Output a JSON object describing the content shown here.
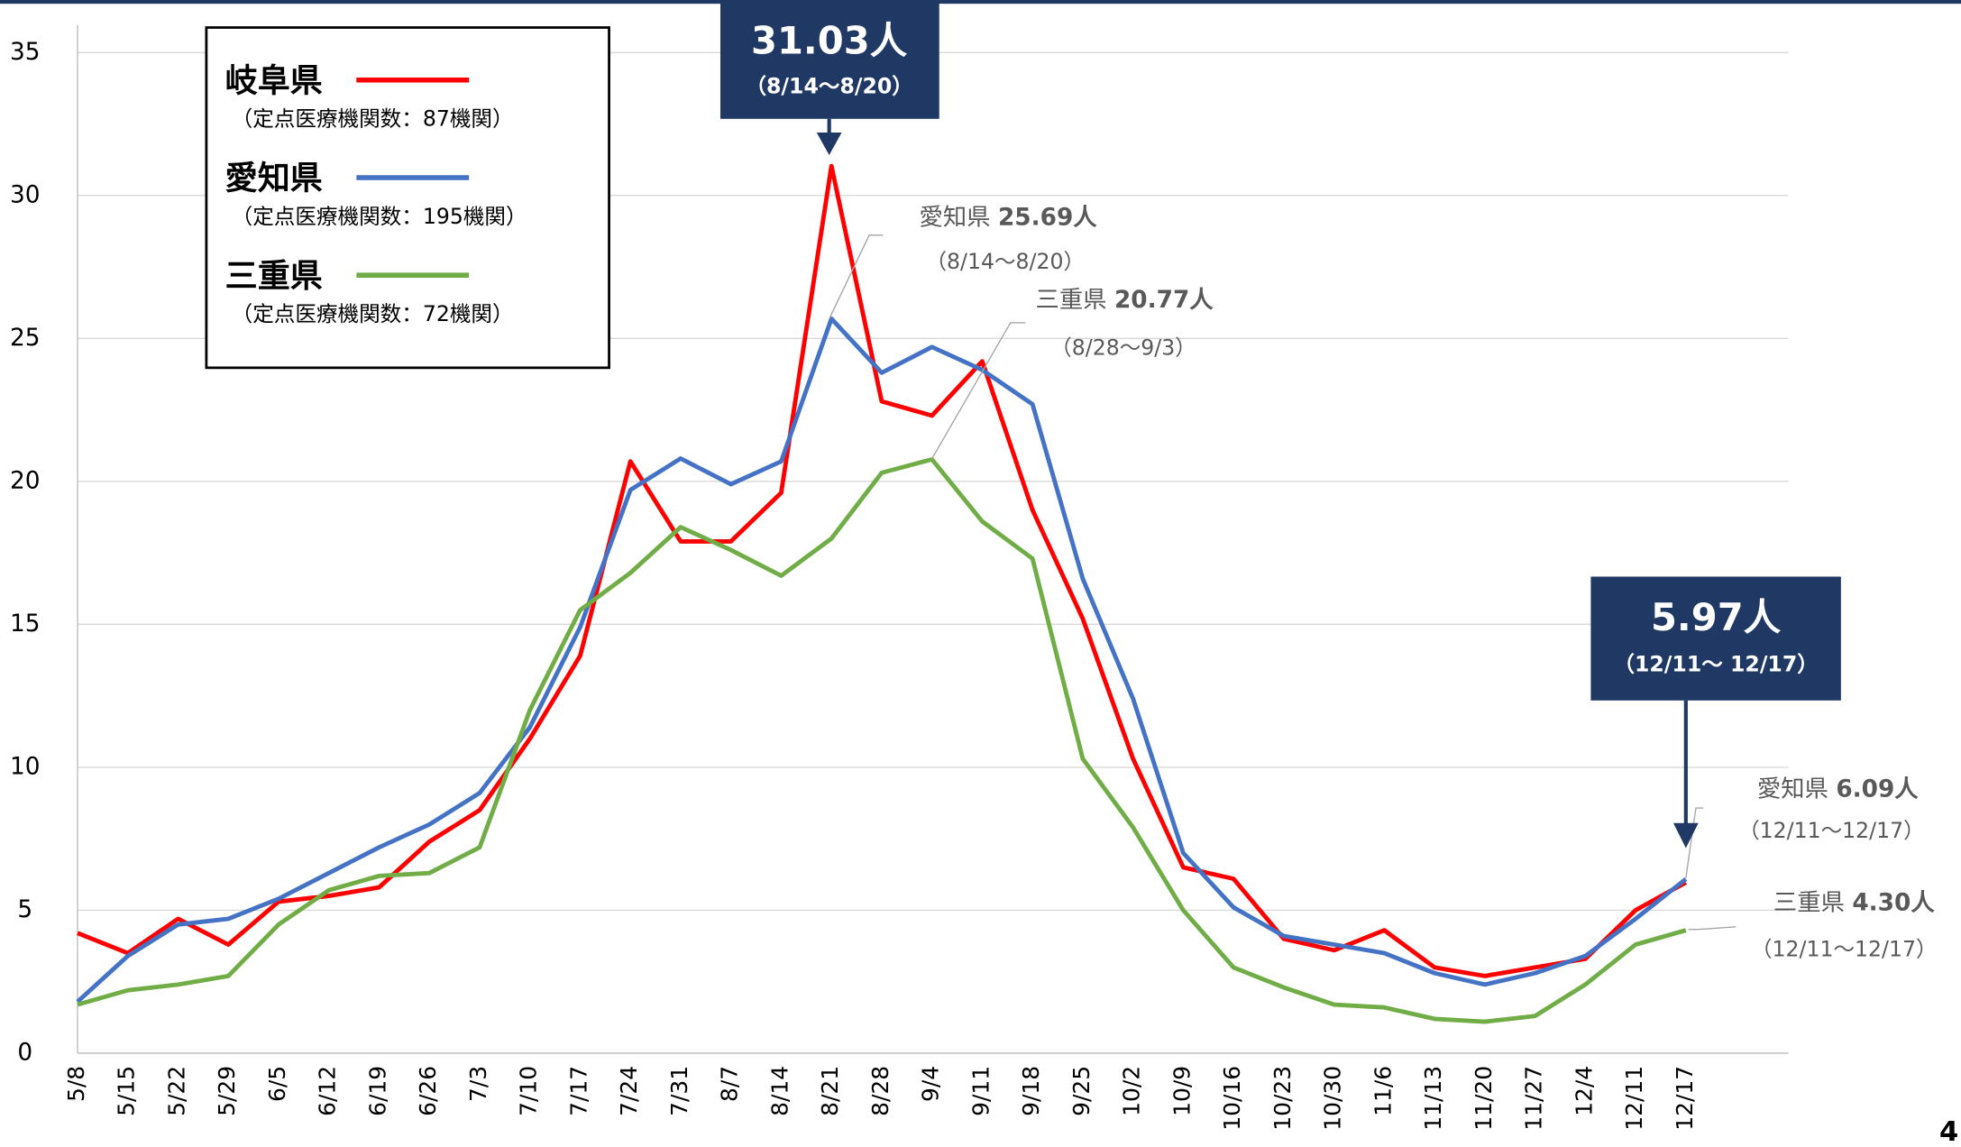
{
  "chart_data": {
    "type": "line",
    "categories": [
      "5/8",
      "5/15",
      "5/22",
      "5/29",
      "6/5",
      "6/12",
      "6/19",
      "6/26",
      "7/3",
      "7/10",
      "7/17",
      "7/24",
      "7/31",
      "8/7",
      "8/14",
      "8/21",
      "8/28",
      "9/4",
      "9/11",
      "9/18",
      "9/25",
      "10/2",
      "10/9",
      "10/16",
      "10/23",
      "10/30",
      "11/6",
      "11/13",
      "11/20",
      "11/27",
      "12/4",
      "12/11",
      "12/17"
    ],
    "series": [
      {
        "name": "岐阜県",
        "note": "（定点医療機関数：87機関）",
        "color": "#ff0000",
        "values": [
          4.2,
          3.5,
          4.7,
          3.8,
          5.3,
          5.5,
          5.8,
          7.4,
          8.5,
          11.0,
          13.9,
          20.7,
          17.9,
          17.9,
          19.6,
          31.03,
          22.8,
          22.3,
          24.2,
          19.0,
          15.2,
          10.3,
          6.5,
          6.1,
          4.0,
          3.6,
          4.3,
          3.0,
          2.7,
          3.0,
          3.3,
          5.0,
          5.97
        ]
      },
      {
        "name": "愛知県",
        "note": "（定点医療機関数：195機関）",
        "color": "#4472c4",
        "values": [
          1.8,
          3.4,
          4.5,
          4.7,
          5.4,
          6.3,
          7.2,
          8.0,
          9.1,
          11.4,
          14.9,
          19.7,
          20.8,
          19.9,
          20.7,
          25.69,
          23.8,
          24.7,
          23.9,
          22.7,
          16.6,
          12.4,
          7.0,
          5.1,
          4.1,
          3.8,
          3.5,
          2.8,
          2.4,
          2.8,
          3.4,
          4.7,
          6.09
        ]
      },
      {
        "name": "三重県",
        "note": "（定点医療機関数：72機関）",
        "color": "#70ad47",
        "values": [
          1.7,
          2.2,
          2.4,
          2.7,
          4.5,
          5.7,
          6.2,
          6.3,
          7.2,
          12.0,
          15.5,
          16.8,
          18.4,
          17.6,
          16.7,
          18.0,
          20.3,
          20.77,
          18.6,
          17.3,
          10.3,
          7.9,
          5.0,
          3.0,
          2.3,
          1.7,
          1.6,
          1.2,
          1.1,
          1.3,
          2.4,
          3.8,
          4.3
        ]
      }
    ],
    "ylim": [
      0,
      35
    ],
    "yticks": [
      0,
      5,
      10,
      15,
      20,
      25,
      30,
      35
    ],
    "grid": true,
    "callouts": [
      {
        "value": "31.03人",
        "period": "（8/14～8/20）"
      },
      {
        "value": "5.97人",
        "period": "（12/11～ 12/17）"
      }
    ],
    "annotations": [
      {
        "prefix": "愛知県",
        "value": "25.69人",
        "period": "（8/14～8/20）"
      },
      {
        "prefix": "三重県",
        "value": "20.77人",
        "period": "（8/28～9/3）"
      },
      {
        "prefix": "愛知県",
        "value": "6.09人",
        "period": "（12/11～12/17）"
      },
      {
        "prefix": "三重県",
        "value": "4.30人",
        "period": "（12/11～12/17）"
      }
    ],
    "page_number": "4"
  }
}
